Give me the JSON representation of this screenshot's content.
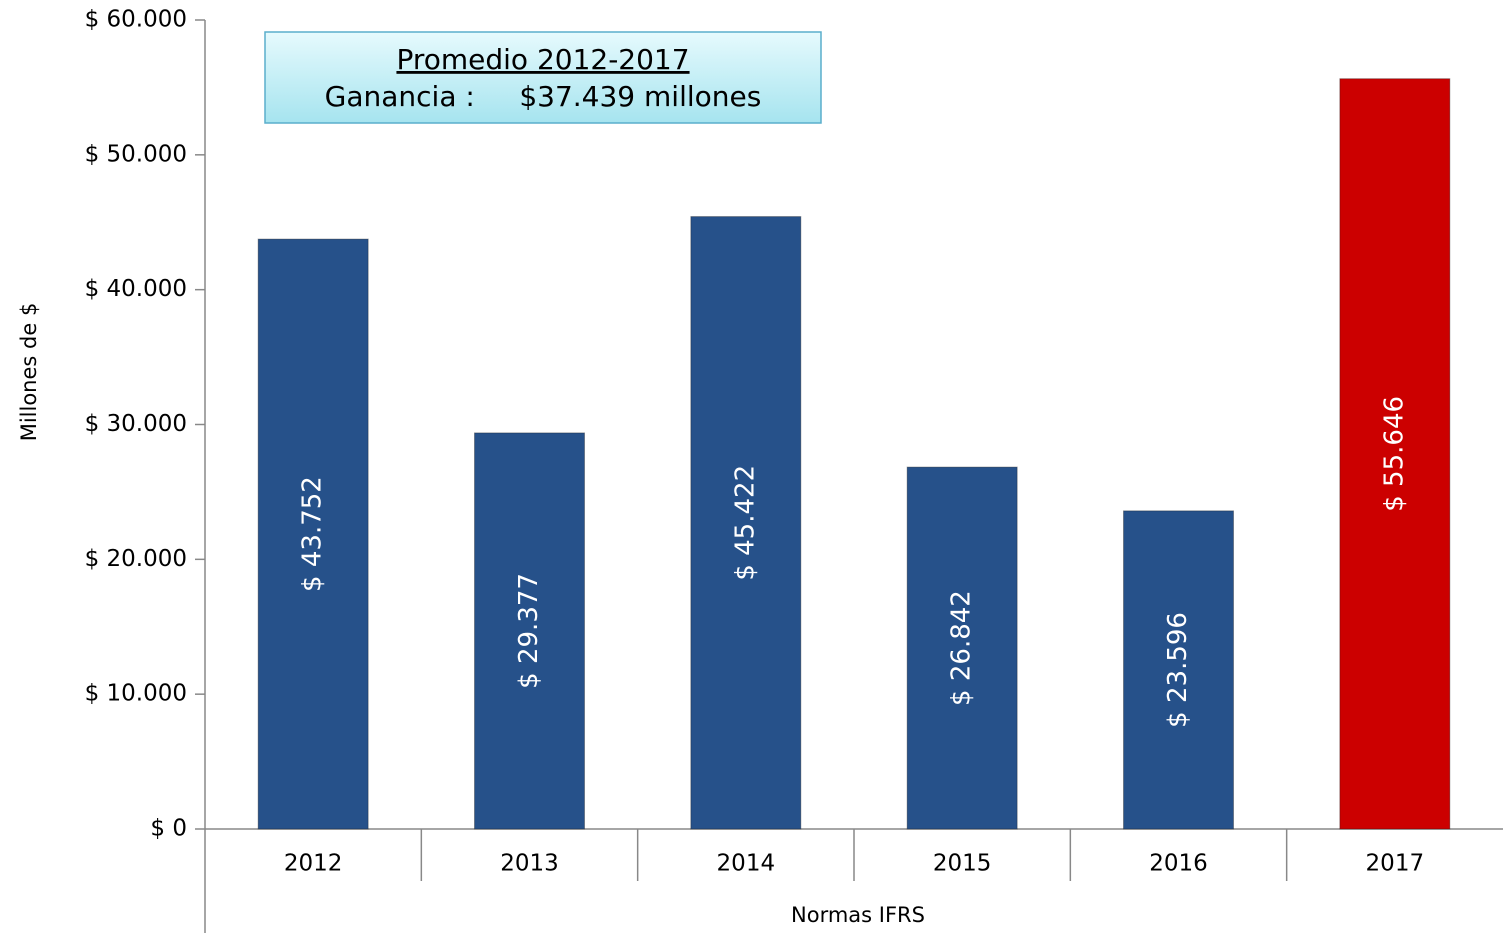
{
  "chart_data": {
    "type": "bar",
    "categories": [
      "2012",
      "2013",
      "2014",
      "2015",
      "2016",
      "2017"
    ],
    "values": [
      43752,
      29377,
      45422,
      26842,
      23596,
      55646
    ],
    "value_labels": [
      "$ 43.752",
      "$ 29.377",
      "$ 45.422",
      "$ 26.842",
      "$ 23.596",
      "$ 55.646"
    ],
    "colors": [
      "#26518a",
      "#26518a",
      "#26518a",
      "#26518a",
      "#26518a",
      "#cc0000"
    ],
    "ylim": [
      0,
      60000
    ],
    "yticks": [
      {
        "value": 0,
        "label": "$ 0"
      },
      {
        "value": 10000,
        "label": "$ 10.000"
      },
      {
        "value": 20000,
        "label": "$ 20.000"
      },
      {
        "value": 30000,
        "label": "$ 30.000"
      },
      {
        "value": 40000,
        "label": "$ 40.000"
      },
      {
        "value": 50000,
        "label": "$ 50.000"
      },
      {
        "value": 60000,
        "label": "$ 60.000"
      }
    ],
    "y_label": "Millones de $",
    "x_label": "Normas IFRS",
    "annotation": [
      "Promedio 2012-2017",
      "Ganancia :     $37.439 millones"
    ]
  }
}
